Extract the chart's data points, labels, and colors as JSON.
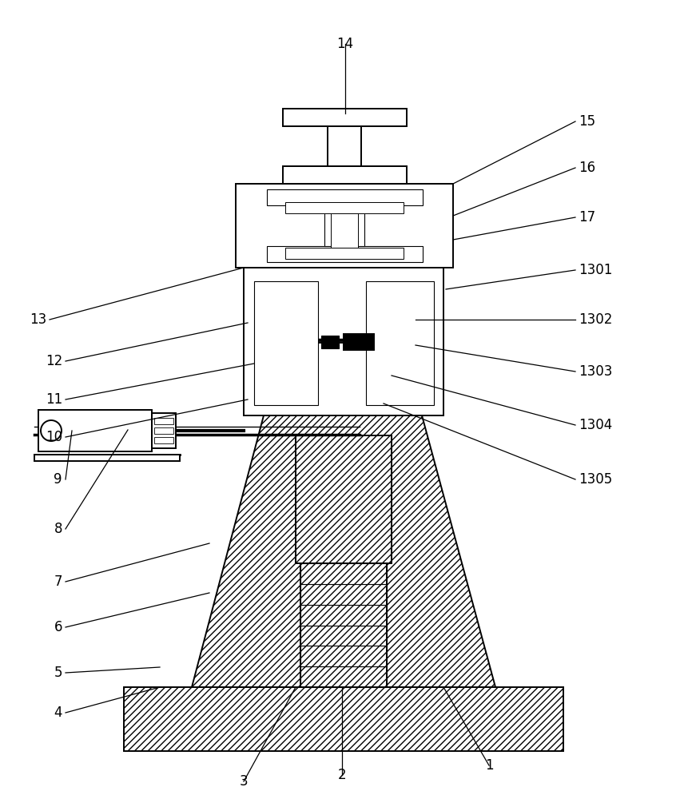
{
  "bg_color": "#ffffff",
  "line_color": "#000000",
  "fig_width": 8.61,
  "fig_height": 10.0,
  "lw_main": 1.4,
  "lw_thin": 0.8,
  "label_fontsize": 12
}
